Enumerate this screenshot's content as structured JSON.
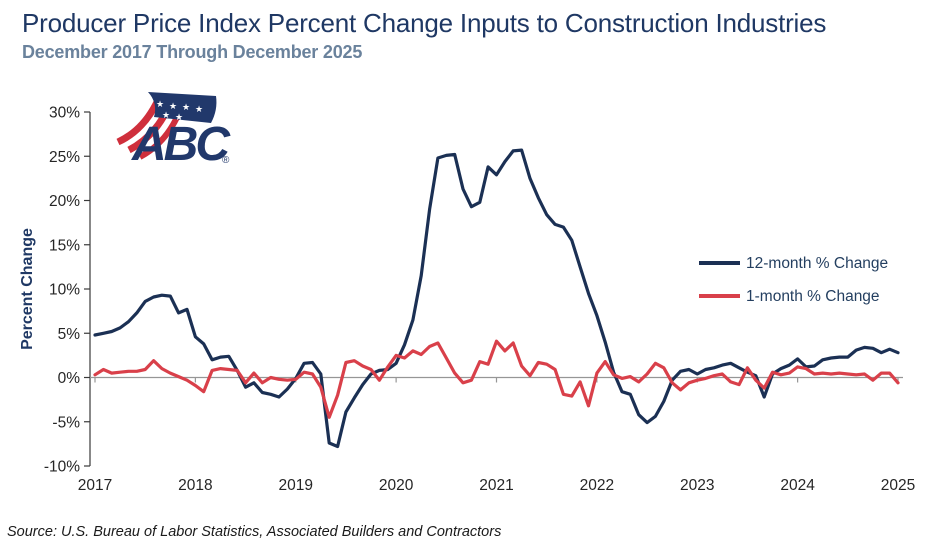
{
  "header": {
    "title": "Producer Price Index Percent Change Inputs to Construction Industries",
    "subtitle": "December 2017 Through December 2025"
  },
  "footer": {
    "source": "Source: U.S. Bureau of Labor Statistics, Associated Builders and Contractors"
  },
  "logo": {
    "text": "ABC",
    "registered": "®",
    "blue": "#21386b",
    "red": "#cf2f3c"
  },
  "colors": {
    "title_navy": "#1f3864",
    "subtitle_slate": "#6a829c",
    "axis_text": "#262626",
    "zero_line": "#969696",
    "axis_line": "#3a3a3a"
  },
  "chart_data": {
    "type": "line",
    "title": "Producer Price Index Percent Change Inputs to Construction Industries",
    "subtitle": "December 2017 Through December 2025",
    "ylabel": "Percent Change",
    "ylim": [
      -10,
      30
    ],
    "ytick_step": 5,
    "ytick_labels": [
      "30%",
      "25%",
      "20%",
      "15%",
      "10%",
      "5%",
      "0%",
      "-5%",
      "-10%"
    ],
    "x_start": "2017-12",
    "x_end": "2025-12",
    "freq": "monthly",
    "points_per_series": 97,
    "x_year_labels": [
      "2017",
      "2018",
      "2019",
      "2020",
      "2021",
      "2022",
      "2023",
      "2024",
      "2025"
    ],
    "grid": "zero-line-only",
    "legend_position": "right-middle",
    "series": [
      {
        "name": "12-month % Change",
        "color": "#1b3054",
        "values": [
          4.8,
          5.0,
          5.2,
          5.6,
          6.3,
          7.3,
          8.6,
          9.1,
          9.3,
          9.2,
          7.3,
          7.7,
          4.6,
          3.8,
          2.0,
          2.3,
          2.4,
          0.8,
          -1.1,
          -0.6,
          -1.7,
          -1.9,
          -2.2,
          -1.3,
          -0.1,
          1.6,
          1.7,
          0.4,
          -7.4,
          -7.8,
          -3.9,
          -2.3,
          -0.8,
          0.4,
          0.8,
          0.9,
          1.6,
          3.7,
          6.5,
          11.5,
          19.0,
          24.8,
          25.1,
          25.2,
          21.3,
          19.3,
          19.8,
          23.8,
          22.9,
          24.4,
          25.6,
          25.7,
          22.5,
          20.3,
          18.4,
          17.3,
          17.0,
          15.5,
          12.5,
          9.5,
          7.0,
          4.0,
          0.6,
          -1.6,
          -1.9,
          -4.2,
          -5.1,
          -4.4,
          -2.7,
          -0.3,
          0.7,
          0.9,
          0.4,
          0.9,
          1.1,
          1.4,
          1.6,
          1.1,
          0.6,
          0.2,
          -2.2,
          0.4,
          1.0,
          1.4,
          2.1,
          1.2,
          1.3,
          2.0,
          2.2,
          2.3,
          2.3,
          3.1,
          3.4,
          3.3,
          2.8,
          3.2,
          2.8
        ]
      },
      {
        "name": "1-month % Change",
        "color": "#d9404a",
        "values": [
          0.3,
          0.9,
          0.5,
          0.6,
          0.7,
          0.7,
          0.9,
          1.9,
          1.0,
          0.5,
          0.1,
          -0.3,
          -0.9,
          -1.6,
          0.8,
          1.0,
          0.9,
          0.8,
          -0.6,
          0.5,
          -0.6,
          0.0,
          -0.2,
          -0.3,
          -0.2,
          0.6,
          0.4,
          -1.1,
          -4.5,
          -2.0,
          1.7,
          1.9,
          1.3,
          0.9,
          -0.3,
          1.2,
          2.5,
          2.2,
          3.0,
          2.6,
          3.5,
          3.9,
          2.2,
          0.5,
          -0.6,
          -0.3,
          1.8,
          1.5,
          4.1,
          3.0,
          3.9,
          1.3,
          0.2,
          1.7,
          1.5,
          0.9,
          -1.9,
          -2.1,
          -0.5,
          -3.2,
          0.5,
          1.8,
          0.3,
          -0.1,
          0.1,
          -0.5,
          0.4,
          1.6,
          1.1,
          -0.6,
          -1.4,
          -0.6,
          -0.3,
          -0.1,
          0.2,
          0.4,
          -0.5,
          -0.8,
          1.1,
          -0.3,
          -1.2,
          0.6,
          0.3,
          0.5,
          1.2,
          1.0,
          0.4,
          0.5,
          0.4,
          0.5,
          0.4,
          0.3,
          0.4,
          -0.3,
          0.5,
          0.5,
          -0.6
        ]
      }
    ]
  }
}
